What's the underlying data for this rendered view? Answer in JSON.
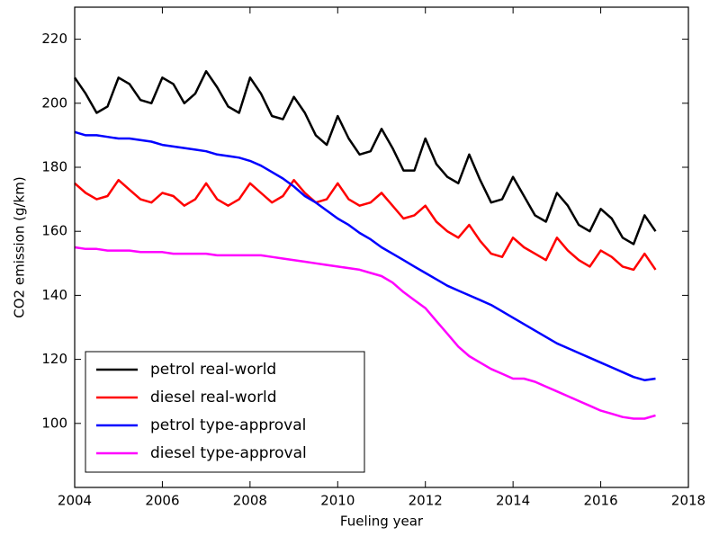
{
  "chart_data": {
    "type": "line",
    "x_label": "Fueling year",
    "y_label": "CO2 emission (g/km)",
    "xlim": [
      2004,
      2018
    ],
    "xticks": [
      2004,
      2006,
      2008,
      2010,
      2012,
      2014,
      2016,
      2018
    ],
    "ylim": [
      80,
      230
    ],
    "yticks": [
      100,
      120,
      140,
      160,
      180,
      200,
      220
    ],
    "legend": "lower left",
    "x": [
      2004,
      2004.25,
      2004.5,
      2004.75,
      2005,
      2005.25,
      2005.5,
      2005.75,
      2006,
      2006.25,
      2006.5,
      2006.75,
      2007,
      2007.25,
      2007.5,
      2007.75,
      2008,
      2008.25,
      2008.5,
      2008.75,
      2009,
      2009.25,
      2009.5,
      2009.75,
      2010,
      2010.25,
      2010.5,
      2010.75,
      2011,
      2011.25,
      2011.5,
      2011.75,
      2012,
      2012.25,
      2012.5,
      2012.75,
      2013,
      2013.25,
      2013.5,
      2013.75,
      2014,
      2014.25,
      2014.5,
      2014.75,
      2015,
      2015.25,
      2015.5,
      2015.75,
      2016,
      2016.25,
      2016.5,
      2016.75,
      2017,
      2017.25
    ],
    "series": [
      {
        "name": "petrol real-world",
        "color": "#000000",
        "values": [
          208,
          203,
          197,
          199,
          208,
          206,
          201,
          200,
          208,
          206,
          200,
          203,
          210,
          205,
          199,
          197,
          208,
          203,
          196,
          195,
          202,
          197,
          190,
          187,
          196,
          189,
          184,
          185,
          192,
          186,
          179,
          179,
          189,
          181,
          177,
          175,
          184,
          176,
          169,
          170,
          177,
          171,
          165,
          163,
          172,
          168,
          162,
          160,
          167,
          164,
          158,
          156,
          165,
          160
        ]
      },
      {
        "name": "diesel real-world",
        "color": "#ff0000",
        "values": [
          175,
          172,
          170,
          171,
          176,
          173,
          170,
          169,
          172,
          171,
          168,
          170,
          175,
          170,
          168,
          170,
          175,
          172,
          169,
          171,
          176,
          172,
          169,
          170,
          175,
          170,
          168,
          169,
          172,
          168,
          164,
          165,
          168,
          163,
          160,
          158,
          162,
          157,
          153,
          152,
          158,
          155,
          153,
          151,
          158,
          154,
          151,
          149,
          154,
          152,
          149,
          148,
          153,
          148
        ]
      },
      {
        "name": "petrol type-approval",
        "color": "#0000ff",
        "values": [
          191,
          190,
          190,
          189.5,
          189,
          189,
          188.5,
          188,
          187,
          186.5,
          186,
          185.5,
          185,
          184,
          183.5,
          183,
          182,
          180.5,
          178.5,
          176.5,
          174,
          171,
          169,
          166.5,
          164,
          162,
          159.5,
          157.5,
          155,
          153,
          151,
          149,
          147,
          145,
          143,
          141.5,
          140,
          138.5,
          137,
          135,
          133,
          131,
          129,
          127,
          125,
          123.5,
          122,
          120.5,
          119,
          117.5,
          116,
          114.5,
          113.5,
          114
        ]
      },
      {
        "name": "diesel type-approval",
        "color": "#ff00ff",
        "values": [
          155,
          154.5,
          154.5,
          154,
          154,
          154,
          153.5,
          153.5,
          153.5,
          153,
          153,
          153,
          153,
          152.5,
          152.5,
          152.5,
          152.5,
          152.5,
          152,
          151.5,
          151,
          150.5,
          150,
          149.5,
          149,
          148.5,
          148,
          147,
          146,
          144,
          141,
          138.5,
          136,
          132,
          128,
          124,
          121,
          119,
          117,
          115.5,
          114,
          114,
          113,
          111.5,
          110,
          108.5,
          107,
          105.5,
          104,
          103,
          102,
          101.5,
          101.5,
          102.5
        ]
      }
    ]
  }
}
